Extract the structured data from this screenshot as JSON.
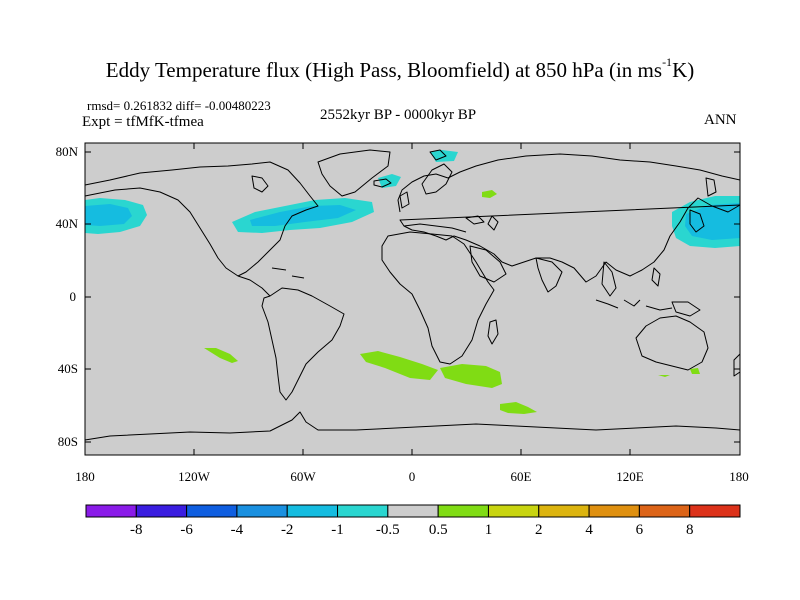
{
  "title": {
    "main": "Eddy Temperature flux (High Pass, Bloomfield) at 850 hPa (in ms",
    "sup": "-1",
    "end": "K)"
  },
  "stats": "rmsd= 0.261832 diff= -0.00480223",
  "experiment": "Expt = tfMfK-tfmea",
  "period": "2552kyr BP - 0000kyr BP",
  "season": "ANN",
  "axes": {
    "lat_labels": [
      "80N",
      "40N",
      "0",
      "40S",
      "80S"
    ],
    "lon_labels": [
      "180",
      "120W",
      "60W",
      "0",
      "60E",
      "120E",
      "180"
    ]
  },
  "colorbar": {
    "colors": [
      "#8a1be8",
      "#3a1de0",
      "#0f5ee0",
      "#1a90e0",
      "#15bce0",
      "#2ad6d0",
      "#cdcdcd",
      "#80dc14",
      "#c8d410",
      "#dcb40f",
      "#df9010",
      "#dc6418",
      "#dc321a"
    ],
    "labels": [
      "-8",
      "-6",
      "-4",
      "-2",
      "-1",
      "-0.5",
      "0.5",
      "1",
      "2",
      "4",
      "6",
      "8"
    ]
  },
  "map_style": {
    "ocean": "#cdcdcd",
    "negative_fill": "#2ad6d0",
    "negative_core": "#15bce0",
    "positive_fill": "#80dc14",
    "coast": "#000000"
  }
}
